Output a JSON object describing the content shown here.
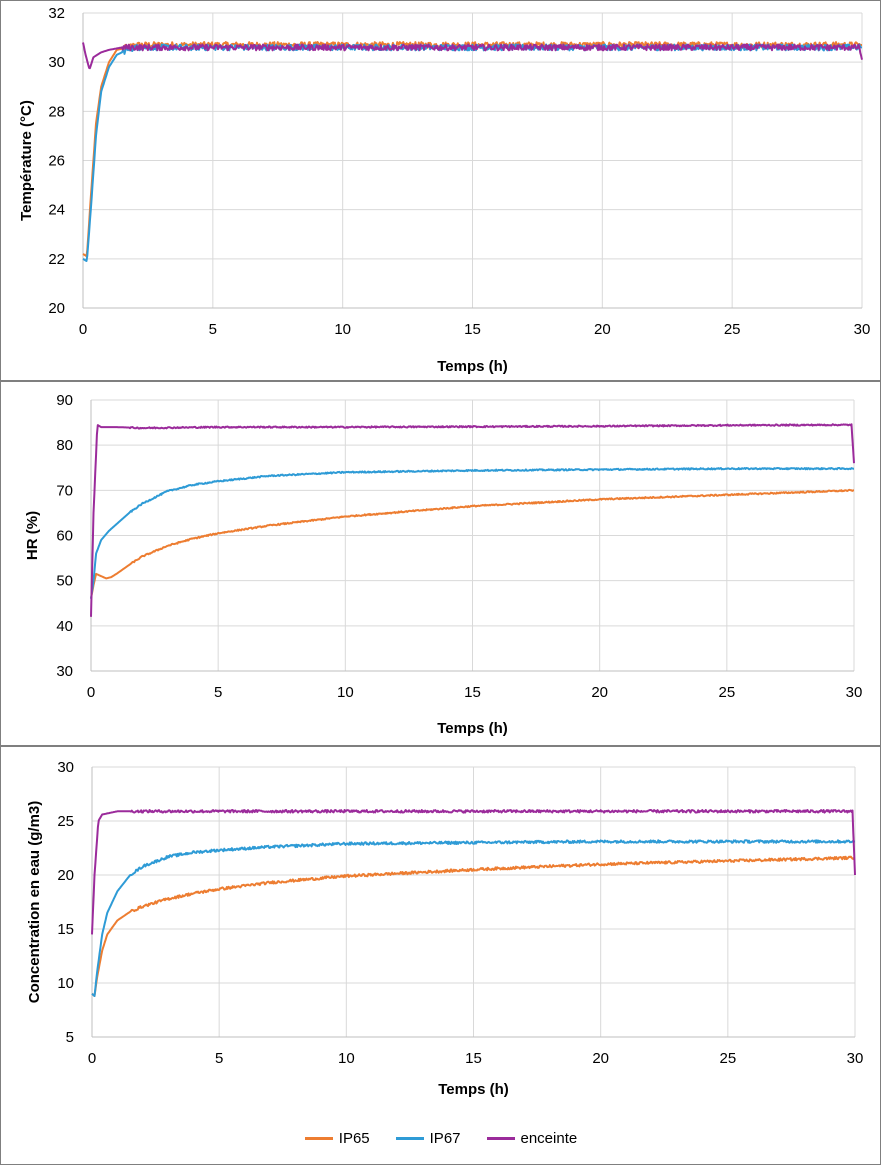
{
  "colors": {
    "IP65": "#ED7D31",
    "IP67": "#2E9BD6",
    "enceinte": "#9B2B9B",
    "grid": "#d9d9d9",
    "axis": "#bfbfbf"
  },
  "legend": [
    {
      "key": "IP65",
      "label": "IP65"
    },
    {
      "key": "IP67",
      "label": "IP67"
    },
    {
      "key": "enceinte",
      "label": "enceinte"
    }
  ],
  "chart_data": [
    {
      "type": "line",
      "id": "temperature",
      "title": "",
      "xlabel": "Temps (h)",
      "ylabel": "Température (°C)",
      "xlim": [
        0,
        30
      ],
      "ylim": [
        20,
        32
      ],
      "xticks": [
        0,
        5,
        10,
        15,
        20,
        25,
        30
      ],
      "yticks": [
        20,
        22,
        24,
        26,
        28,
        30,
        32
      ],
      "grid": true,
      "noise": 0.12,
      "series": [
        {
          "name": "IP65",
          "x": [
            0,
            0.15,
            0.3,
            0.5,
            0.7,
            1.0,
            1.3,
            1.7,
            2,
            5,
            10,
            15,
            20,
            25,
            30
          ],
          "y": [
            22.2,
            22.1,
            24.5,
            27.5,
            29.0,
            30.0,
            30.5,
            30.6,
            30.7,
            30.7,
            30.7,
            30.7,
            30.7,
            30.7,
            30.7
          ]
        },
        {
          "name": "IP67",
          "x": [
            0,
            0.15,
            0.3,
            0.5,
            0.7,
            1.0,
            1.3,
            1.7,
            2,
            5,
            10,
            15,
            20,
            25,
            30
          ],
          "y": [
            22.0,
            21.9,
            24.0,
            27.0,
            28.8,
            29.8,
            30.3,
            30.5,
            30.6,
            30.6,
            30.6,
            30.6,
            30.6,
            30.6,
            30.6
          ]
        },
        {
          "name": "enceinte",
          "x": [
            0,
            0.1,
            0.25,
            0.4,
            0.7,
            1.0,
            1.5,
            2,
            5,
            10,
            15,
            20,
            25,
            29.9,
            30
          ],
          "y": [
            30.8,
            30.3,
            29.7,
            30.2,
            30.4,
            30.5,
            30.6,
            30.6,
            30.6,
            30.6,
            30.6,
            30.6,
            30.6,
            30.6,
            30.1
          ]
        }
      ]
    },
    {
      "type": "line",
      "id": "humidity",
      "title": "",
      "xlabel": "Temps (h)",
      "ylabel": "HR (%)",
      "xlim": [
        0,
        30
      ],
      "ylim": [
        30,
        90
      ],
      "xticks": [
        0,
        5,
        10,
        15,
        20,
        25,
        30
      ],
      "yticks": [
        30,
        40,
        50,
        60,
        70,
        80,
        90
      ],
      "grid": true,
      "noise": 0.15,
      "series": [
        {
          "name": "IP65",
          "x": [
            0,
            0.1,
            0.2,
            0.4,
            0.6,
            0.8,
            1.0,
            1.5,
            2,
            3,
            4,
            5,
            7,
            10,
            15,
            20,
            25,
            30
          ],
          "y": [
            46,
            49,
            51.5,
            51,
            50.5,
            50.8,
            51.5,
            53.5,
            55.3,
            57.7,
            59.3,
            60.5,
            62.2,
            64.2,
            66.5,
            68,
            69,
            70
          ]
        },
        {
          "name": "IP67",
          "x": [
            0,
            0.1,
            0.2,
            0.4,
            0.7,
            1.0,
            1.5,
            2,
            3,
            4,
            5,
            7,
            10,
            15,
            20,
            25,
            30
          ],
          "y": [
            46,
            50,
            56,
            59,
            61,
            62.5,
            65,
            67,
            69.8,
            71.2,
            72,
            73.2,
            74,
            74.4,
            74.6,
            74.8,
            74.8
          ]
        },
        {
          "name": "enceinte",
          "x": [
            0,
            0.1,
            0.25,
            0.4,
            1,
            2,
            5,
            10,
            15,
            20,
            25,
            29.9,
            30
          ],
          "y": [
            42,
            65,
            84.5,
            84,
            84,
            83.8,
            84,
            84,
            84.1,
            84.2,
            84.4,
            84.5,
            76
          ]
        }
      ]
    },
    {
      "type": "line",
      "id": "concentration",
      "title": "",
      "xlabel": "Temps (h)",
      "ylabel": "Concentration en eau (g/m3)",
      "xlim": [
        0,
        30
      ],
      "ylim": [
        5,
        30
      ],
      "xticks": [
        0,
        5,
        10,
        15,
        20,
        25,
        30
      ],
      "yticks": [
        5,
        10,
        15,
        20,
        25,
        30
      ],
      "grid": true,
      "noise": 0.12,
      "series": [
        {
          "name": "IP65",
          "x": [
            0,
            0.1,
            0.2,
            0.4,
            0.6,
            1.0,
            1.5,
            2,
            3,
            4,
            5,
            7,
            10,
            15,
            20,
            25,
            30
          ],
          "y": [
            9,
            8.8,
            10.5,
            13,
            14.5,
            15.8,
            16.6,
            17.1,
            17.8,
            18.3,
            18.7,
            19.3,
            19.9,
            20.5,
            21,
            21.3,
            21.6
          ]
        },
        {
          "name": "IP67",
          "x": [
            0,
            0.1,
            0.2,
            0.4,
            0.6,
            1.0,
            1.5,
            2,
            3,
            4,
            5,
            7,
            10,
            15,
            20,
            25,
            30
          ],
          "y": [
            9,
            8.8,
            11,
            14.5,
            16.5,
            18.5,
            20,
            20.8,
            21.7,
            22.1,
            22.3,
            22.6,
            22.9,
            23,
            23.1,
            23.1,
            23.1
          ]
        },
        {
          "name": "enceinte",
          "x": [
            0,
            0.1,
            0.25,
            0.4,
            1,
            2,
            5,
            10,
            15,
            20,
            25,
            29.9,
            30
          ],
          "y": [
            14.5,
            20,
            25,
            25.6,
            25.9,
            25.9,
            25.9,
            25.9,
            25.9,
            25.9,
            25.9,
            25.9,
            20
          ]
        }
      ]
    }
  ]
}
